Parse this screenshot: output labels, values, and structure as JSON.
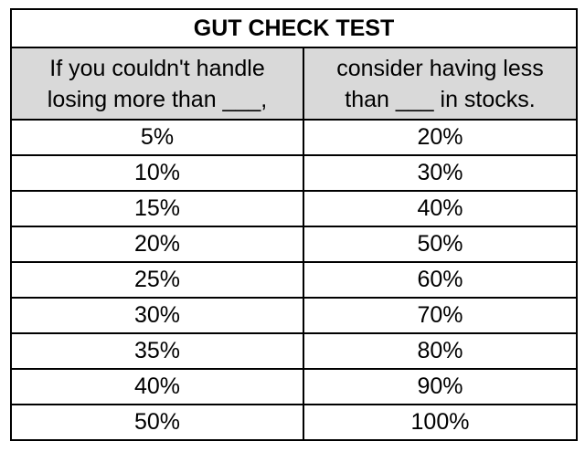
{
  "table": {
    "title": "GUT CHECK TEST",
    "col1_header_line1": "If you couldn't handle",
    "col1_header_line2": "losing more than ___,",
    "col2_header_line1": "consider having less",
    "col2_header_line2": "than ___ in stocks.",
    "header_bg_color": "#d9d9d9",
    "rows": [
      {
        "loss": "5%",
        "stocks": "20%"
      },
      {
        "loss": "10%",
        "stocks": "30%"
      },
      {
        "loss": "15%",
        "stocks": "40%"
      },
      {
        "loss": "20%",
        "stocks": "50%"
      },
      {
        "loss": "25%",
        "stocks": "60%"
      },
      {
        "loss": "30%",
        "stocks": "70%"
      },
      {
        "loss": "35%",
        "stocks": "80%"
      },
      {
        "loss": "40%",
        "stocks": "90%"
      },
      {
        "loss": "50%",
        "stocks": "100%"
      }
    ]
  }
}
